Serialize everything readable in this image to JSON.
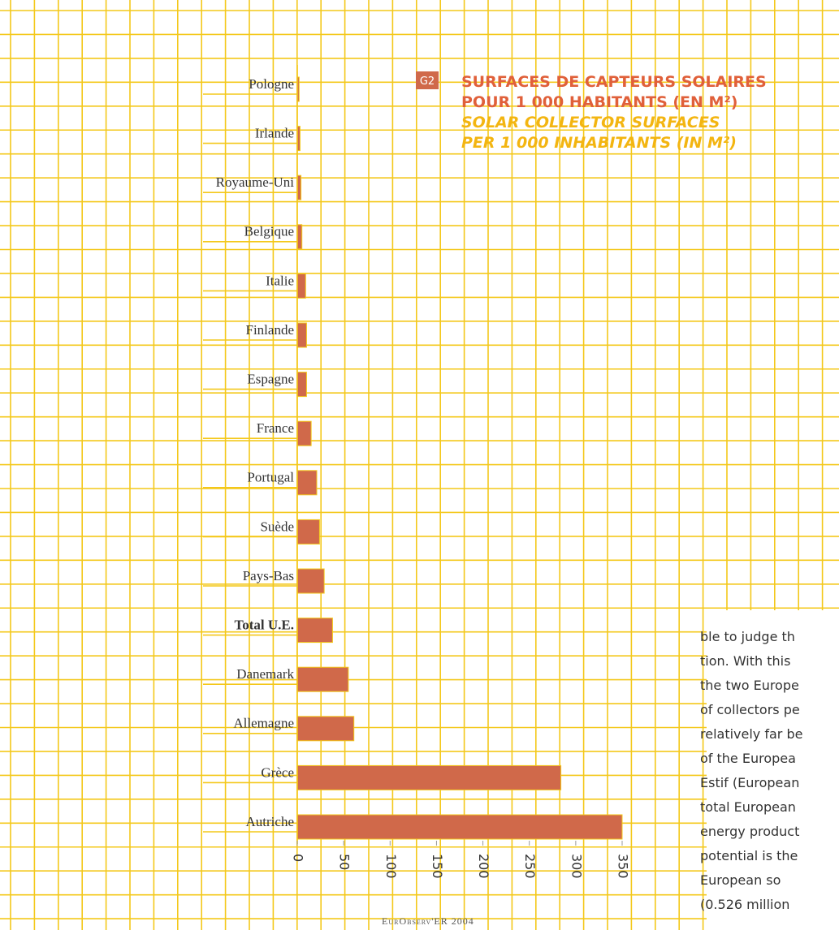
{
  "chart_data": {
    "type": "barh",
    "badge": "G2",
    "title": [
      "SURFACES DE CAPTEURS SOLAIRES",
      "POUR 1 000 HABITANTS (EN M²)"
    ],
    "subtitle": [
      "SOLAR COLLECTOR SURFACES",
      "PER 1 000 INHABITANTS (IN M²)"
    ],
    "categories": [
      "Pologne",
      "Irlande",
      "Royaume-Uni",
      "Belgique",
      "Italie",
      "Finlande",
      "Espagne",
      "France",
      "Portugal",
      "Suède",
      "Pays-Bas",
      "Total U.E.",
      "Danemark",
      "Allemagne",
      "Grèce",
      "Autriche"
    ],
    "values": [
      2,
      3,
      4,
      5,
      9,
      10,
      10,
      15,
      21,
      24,
      29,
      38,
      55,
      61,
      284,
      350
    ],
    "color": "#d0694a",
    "xlim": [
      0,
      350
    ],
    "xticks": [
      0,
      50,
      100,
      150,
      200,
      250,
      300,
      350
    ],
    "source": "EurObserv'ER 2004"
  },
  "article": {
    "lines": [
      "ble to judge th",
      "tion. With this",
      "the two Europe",
      "of collectors pe",
      "relatively far be",
      "of the Europea",
      "Estif (European",
      "total European",
      "energy product",
      "potential is the",
      "European so",
      "(0.526 million"
    ]
  }
}
